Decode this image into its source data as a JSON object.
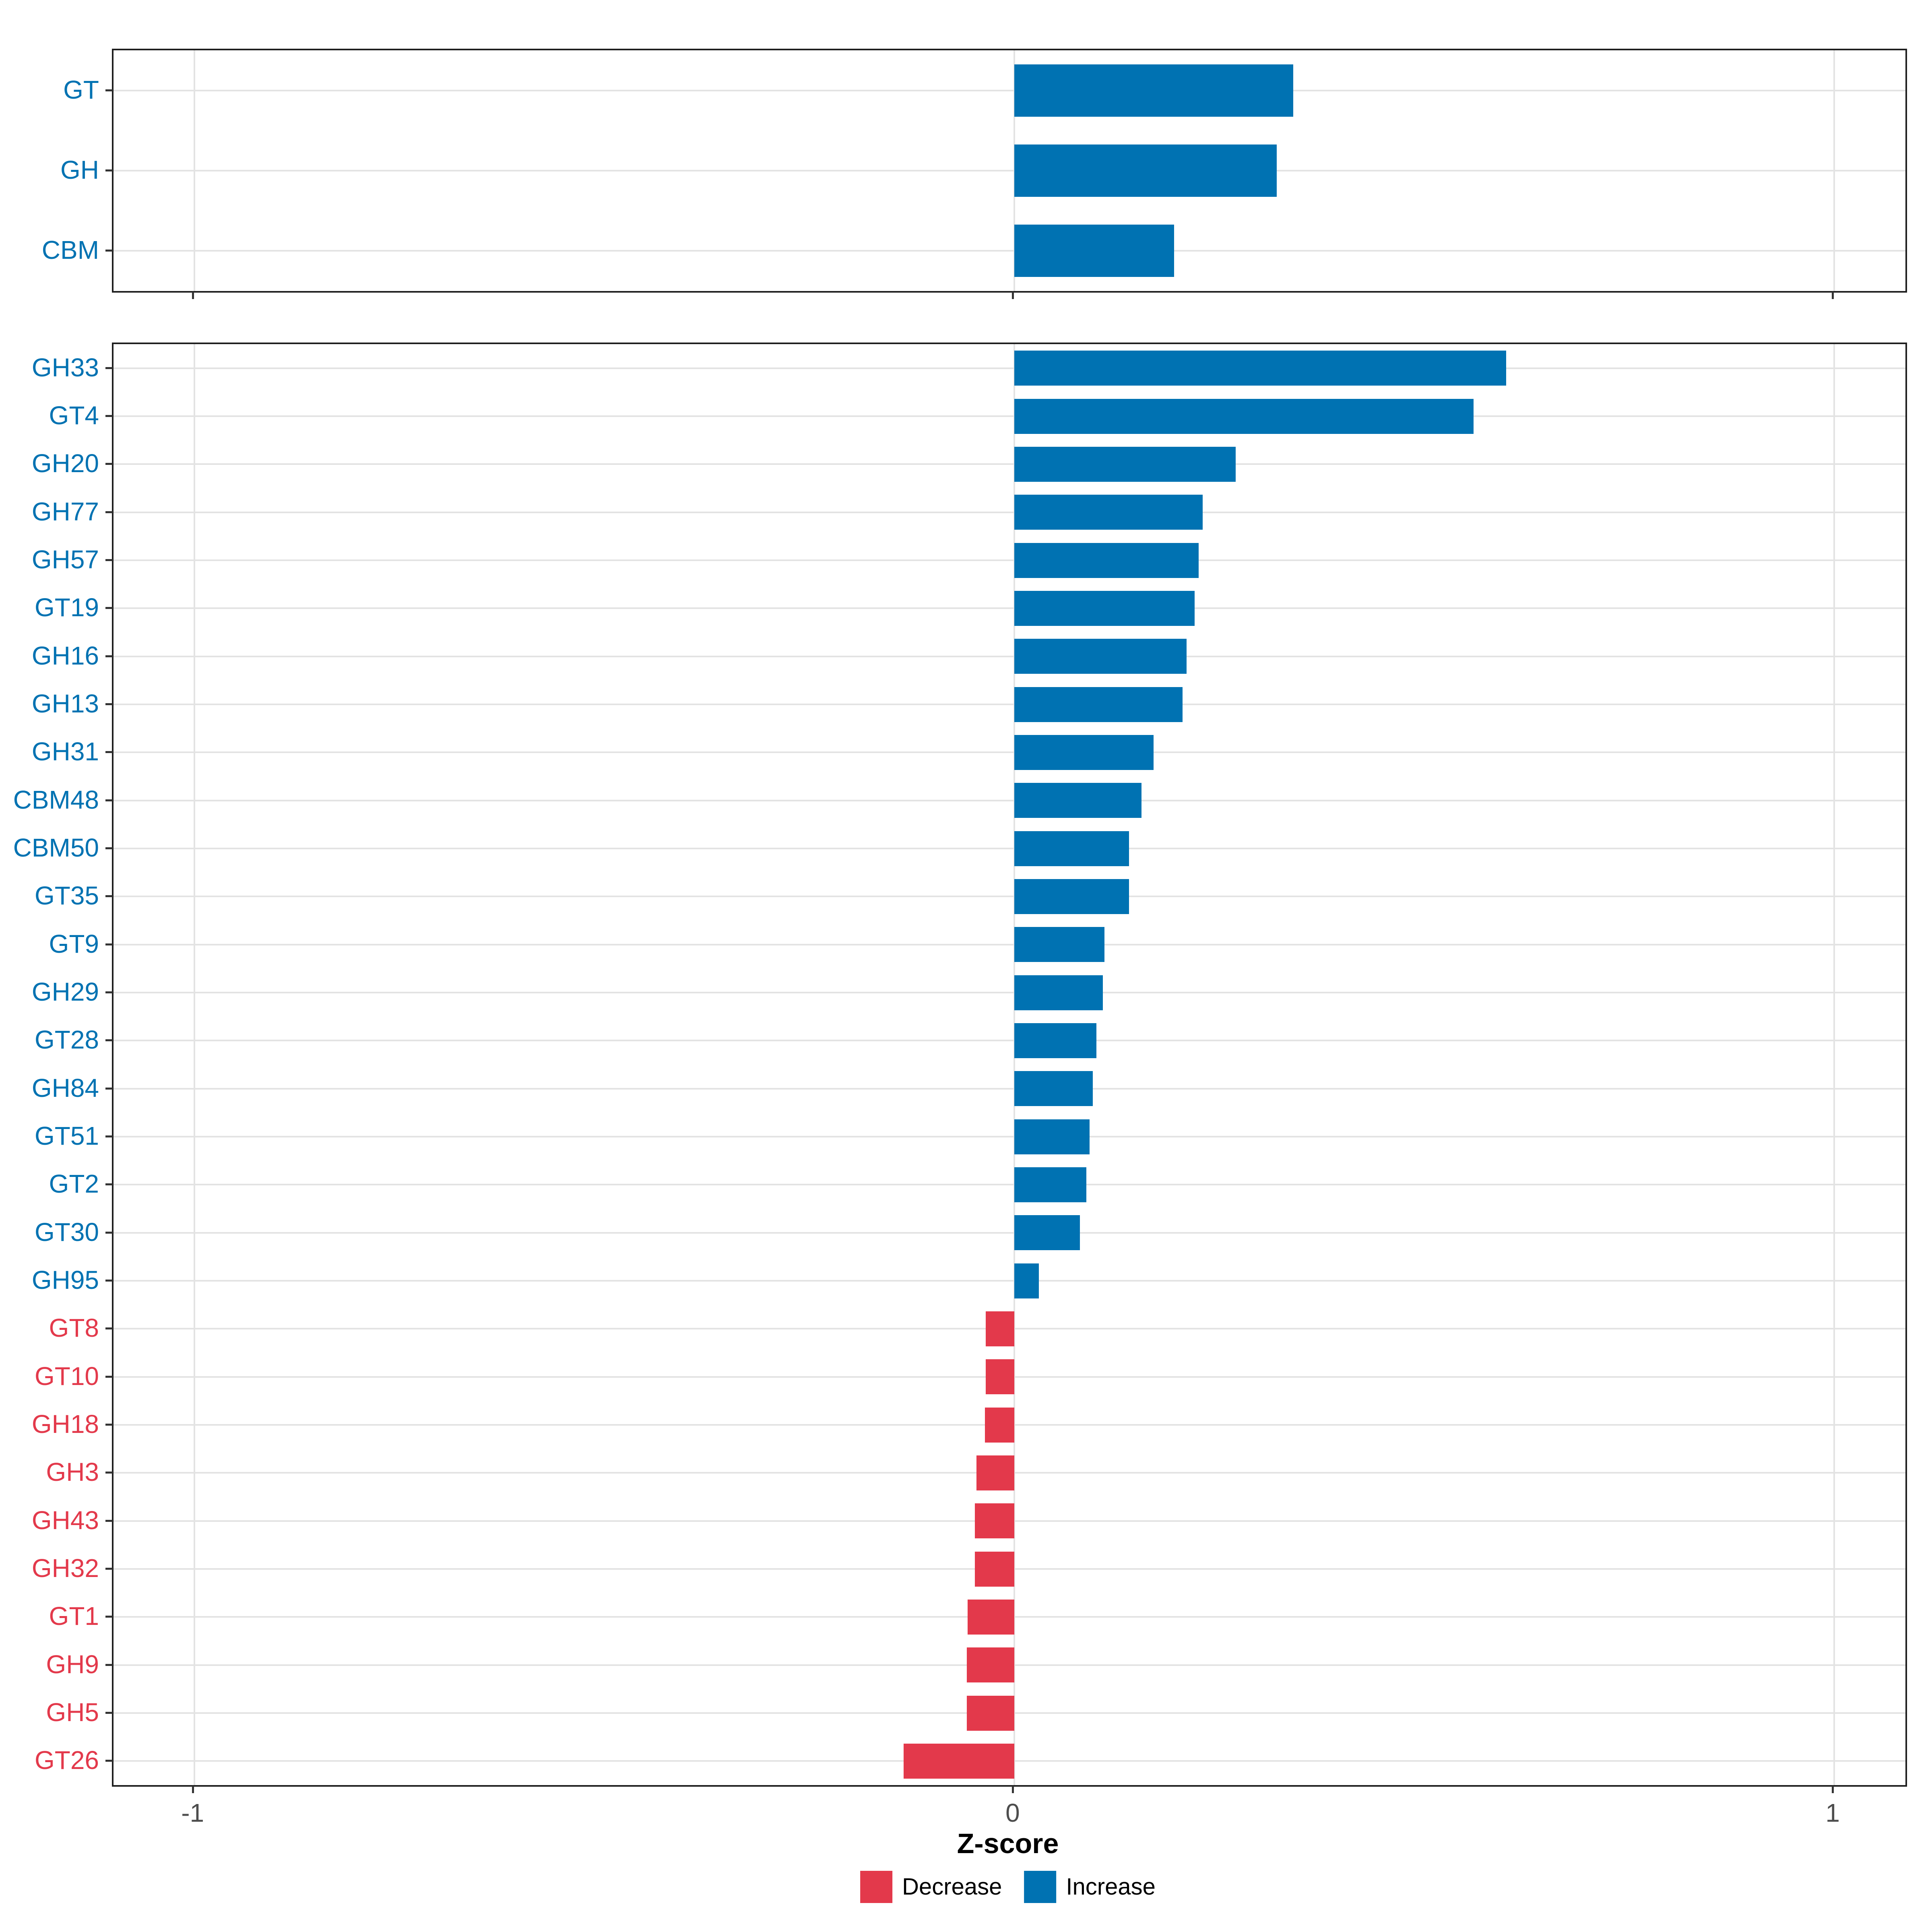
{
  "figure": {
    "background": "#FFFFFF",
    "axis": {
      "xlabel": "Z-score",
      "tick_labels": [
        "-1",
        "0",
        "1"
      ],
      "tick_values": [
        -1,
        0,
        1
      ],
      "xlim": [
        -1.0985,
        1.0868
      ]
    },
    "legend": [
      {
        "label": "Decrease",
        "color": "#E3394B"
      },
      {
        "label": "Increase",
        "color": "#0072B2"
      }
    ],
    "colors": {
      "increase": "#0072B2",
      "decrease": "#E3394B",
      "grid": "#E3E3E3",
      "panel_border": "#1F1F1F",
      "tick": "#333333",
      "tick_label": "#4D4D4D",
      "axis_title": "#000000"
    }
  },
  "chart_data": [
    {
      "type": "bar",
      "panel": "top",
      "orientation": "horizontal",
      "title": "",
      "xlabel": "Z-score",
      "ylabel": "",
      "xlim": [
        -1.1,
        1.09
      ],
      "grid": true,
      "legend_position": "none",
      "categories": [
        "GT",
        "GH",
        "CBM"
      ],
      "values": [
        0.34,
        0.32,
        0.195
      ],
      "directions": [
        "Increase",
        "Increase",
        "Increase"
      ]
    },
    {
      "type": "bar",
      "panel": "bottom",
      "orientation": "horizontal",
      "title": "",
      "xlabel": "Z-score",
      "ylabel": "",
      "xlim": [
        -1.1,
        1.09
      ],
      "grid": true,
      "legend_position": "bottom",
      "categories": [
        "GH33",
        "GT4",
        "GH20",
        "GH77",
        "GH57",
        "GT19",
        "GH16",
        "GH13",
        "GH31",
        "CBM48",
        "CBM50",
        "GT35",
        "GT9",
        "GH29",
        "GT28",
        "GH84",
        "GT51",
        "GT2",
        "GT30",
        "GH95",
        "GT8",
        "GT10",
        "GH18",
        "GH3",
        "GH43",
        "GH32",
        "GT1",
        "GH9",
        "GH5",
        "GT26"
      ],
      "values": [
        0.6,
        0.56,
        0.27,
        0.23,
        0.225,
        0.22,
        0.21,
        0.205,
        0.17,
        0.155,
        0.14,
        0.14,
        0.11,
        0.108,
        0.1,
        0.096,
        0.092,
        0.088,
        0.08,
        0.03,
        -0.035,
        -0.035,
        -0.036,
        -0.046,
        -0.048,
        -0.048,
        -0.057,
        -0.058,
        -0.058,
        -0.135
      ],
      "directions": [
        "Increase",
        "Increase",
        "Increase",
        "Increase",
        "Increase",
        "Increase",
        "Increase",
        "Increase",
        "Increase",
        "Increase",
        "Increase",
        "Increase",
        "Increase",
        "Increase",
        "Increase",
        "Increase",
        "Increase",
        "Increase",
        "Increase",
        "Increase",
        "Decrease",
        "Decrease",
        "Decrease",
        "Decrease",
        "Decrease",
        "Decrease",
        "Decrease",
        "Decrease",
        "Decrease",
        "Decrease"
      ]
    }
  ]
}
